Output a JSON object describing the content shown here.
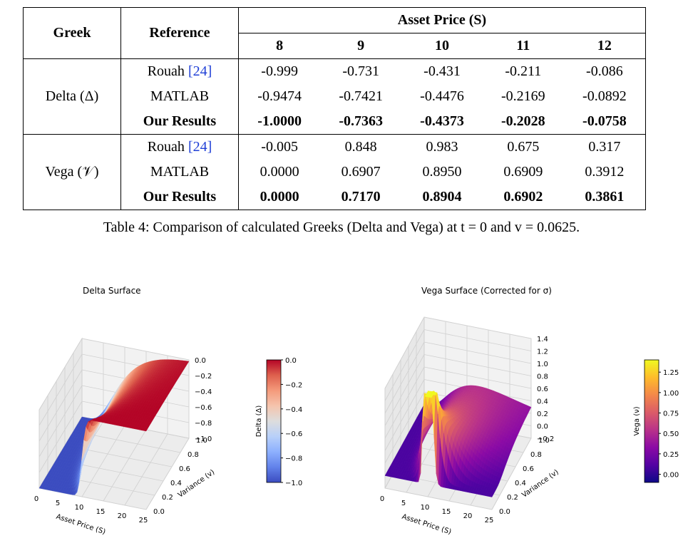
{
  "table": {
    "header": {
      "greek": "Greek",
      "reference": "Reference",
      "asset_price": "Asset Price (S)",
      "prices": [
        "8",
        "9",
        "10",
        "11",
        "12"
      ]
    },
    "groups": [
      {
        "greek": "Delta (Δ)",
        "rows": [
          {
            "ref": "Rouah",
            "cite": "[24]",
            "values": [
              "-0.999",
              "-0.731",
              "-0.431",
              "-0.211",
              "-0.086"
            ],
            "bold": false
          },
          {
            "ref": "MATLAB",
            "cite": "",
            "values": [
              "-0.9474",
              "-0.7421",
              "-0.4476",
              "-0.2169",
              "-0.0892"
            ],
            "bold": false
          },
          {
            "ref": "Our Results",
            "cite": "",
            "values": [
              "-1.0000",
              "-0.7363",
              "-0.4373",
              "-0.2028",
              "-0.0758"
            ],
            "bold": true
          }
        ]
      },
      {
        "greek": "Vega (𝒱)",
        "rows": [
          {
            "ref": "Rouah",
            "cite": "[24]",
            "values": [
              "-0.005",
              "0.848",
              "0.983",
              "0.675",
              "0.317"
            ],
            "bold": false
          },
          {
            "ref": "MATLAB",
            "cite": "",
            "values": [
              "0.0000",
              "0.6907",
              "0.8950",
              "0.6909",
              "0.3912"
            ],
            "bold": false
          },
          {
            "ref": "Our Results",
            "cite": "",
            "values": [
              "0.0000",
              "0.7170",
              "0.8904",
              "0.6902",
              "0.3861"
            ],
            "bold": true
          }
        ]
      }
    ]
  },
  "caption": "Table 4: Comparison of calculated Greeks (Delta and Vega) at t = 0 and v = 0.0625.",
  "chart_data": [
    {
      "type": "surface",
      "title": "Delta Surface",
      "xlabel": "Asset Price (S)",
      "ylabel": "Variance (v)",
      "zlabel": "",
      "x_ticks": [
        "0",
        "5",
        "10",
        "15",
        "20",
        "25"
      ],
      "y_ticks": [
        "0.0",
        "0.2",
        "0.4",
        "0.6",
        "0.8",
        "1.0"
      ],
      "z_ticks": [
        "0.0",
        "−0.2",
        "−0.4",
        "−0.6",
        "−0.8",
        "−1.0"
      ],
      "xlim": [
        0,
        25
      ],
      "ylim": [
        0,
        1
      ],
      "zlim": [
        -1.0,
        0.0
      ],
      "colorbar": {
        "label": "Delta (Δ)",
        "ticks": [
          "0.0",
          "−0.2",
          "−0.4",
          "−0.6",
          "−0.8",
          "−1.0"
        ],
        "colormap": "coolwarm",
        "range": [
          -1.0,
          0.0
        ]
      }
    },
    {
      "type": "surface",
      "title": "Vega Surface (Corrected for σ)",
      "xlabel": "Asset Price (S)",
      "ylabel": "Variance (v)",
      "zlabel": "",
      "x_ticks": [
        "0",
        "5",
        "10",
        "15",
        "20",
        "25"
      ],
      "y_ticks": [
        "0.0",
        "0.2",
        "0.4",
        "0.6",
        "0.8",
        "1.0"
      ],
      "z_ticks": [
        "1.4",
        "1.2",
        "1.0",
        "0.8",
        "0.6",
        "0.4",
        "0.2",
        "0.0",
        "−0.2"
      ],
      "xlim": [
        0,
        25
      ],
      "ylim": [
        0,
        1
      ],
      "zlim": [
        -0.2,
        1.4
      ],
      "colorbar": {
        "label": "Vega (ν)",
        "ticks": [
          "1.25",
          "1.00",
          "0.75",
          "0.50",
          "0.25",
          "0.00"
        ],
        "colormap": "plasma",
        "range": [
          -0.1,
          1.4
        ]
      }
    }
  ]
}
